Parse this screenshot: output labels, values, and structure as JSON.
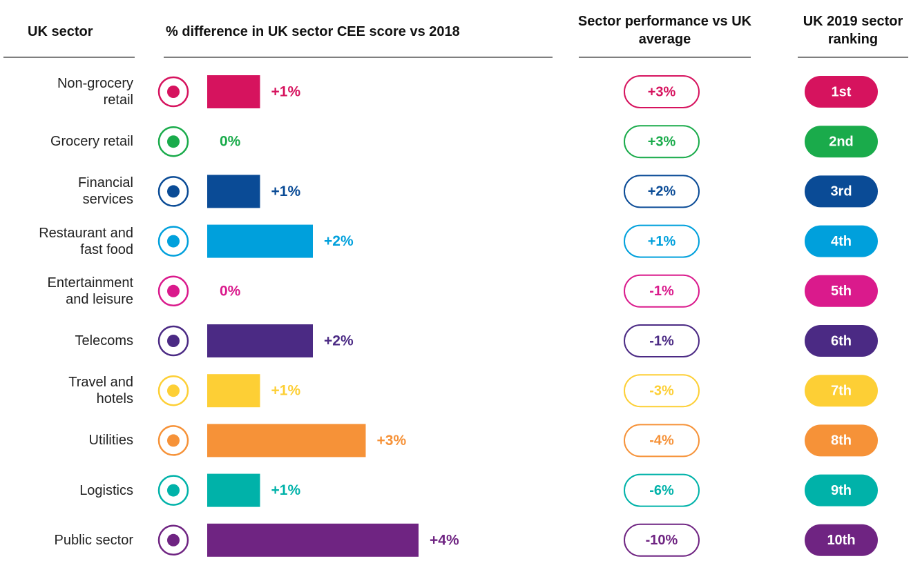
{
  "chart_data": {
    "type": "bar",
    "headers": [
      "UK sector",
      "% difference in UK sector CEE score vs 2018",
      "Sector performance vs UK average",
      "UK 2019 sector ranking"
    ],
    "categories": [
      "Non-grocery retail",
      "Grocery retail",
      "Financial services",
      "Restaurant and fast food",
      "Entertainment and leisure",
      "Telecoms",
      "Travel and hotels",
      "Utilities",
      "Logistics",
      "Public sector"
    ],
    "values": [
      1,
      0,
      1,
      2,
      0,
      2,
      1,
      3,
      1,
      4
    ],
    "value_labels": [
      "+1%",
      "0%",
      "+1%",
      "+2%",
      "0%",
      "+2%",
      "+1%",
      "+3%",
      "+1%",
      "+4%"
    ],
    "colors": [
      "#d6135e",
      "#1aab4b",
      "#0a4b96",
      "#00a0dc",
      "#da1a8c",
      "#4b2a84",
      "#fdcf35",
      "#f69238",
      "#00b2a9",
      "#6f2482"
    ],
    "performance": {
      "values": [
        3,
        3,
        2,
        1,
        -1,
        -1,
        -3,
        -4,
        -6,
        -10
      ],
      "value_labels": [
        "+3%",
        "+3%",
        "+2%",
        "+1%",
        "-1%",
        "-1%",
        "-3%",
        "-4%",
        "-6%",
        "-10%"
      ]
    },
    "ranking": [
      "1st",
      "2nd",
      "3rd",
      "4th",
      "5th",
      "6th",
      "7th",
      "8th",
      "9th",
      "10th"
    ]
  }
}
